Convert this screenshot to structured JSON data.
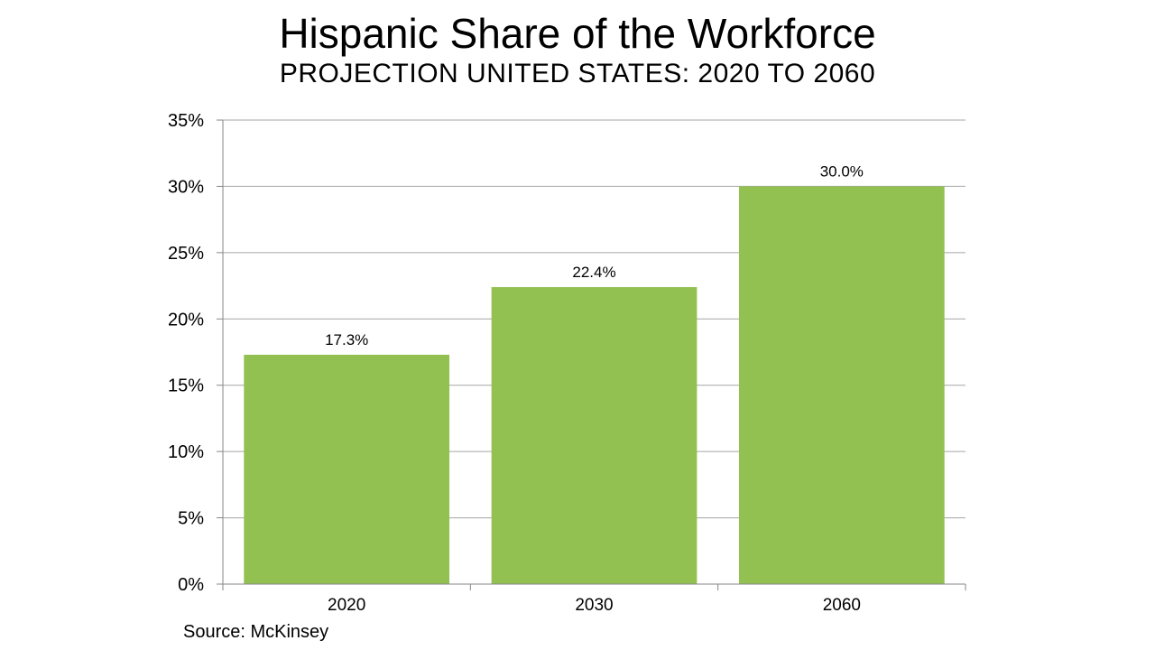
{
  "chart_data": {
    "type": "bar",
    "title": "Hispanic Share of the Workforce",
    "subtitle": "PROJECTION UNITED STATES: 2020 TO 2060",
    "categories": [
      "2020",
      "2030",
      "2060"
    ],
    "values": [
      17.3,
      22.4,
      30.0
    ],
    "data_labels": [
      "17.3%",
      "22.4%",
      "30.0%"
    ],
    "yticks": [
      0,
      5,
      10,
      15,
      20,
      25,
      30,
      35
    ],
    "ytick_labels": [
      "0%",
      "5%",
      "10%",
      "15%",
      "20%",
      "25%",
      "30%",
      "35%"
    ],
    "ylim": [
      0,
      35
    ],
    "xlabel": "",
    "ylabel": "",
    "grid": true,
    "legend": "none",
    "bar_color": "#92C151",
    "grid_color": "#A6A6A6",
    "axis_color": "#868686",
    "source": "Source: McKinsey"
  }
}
